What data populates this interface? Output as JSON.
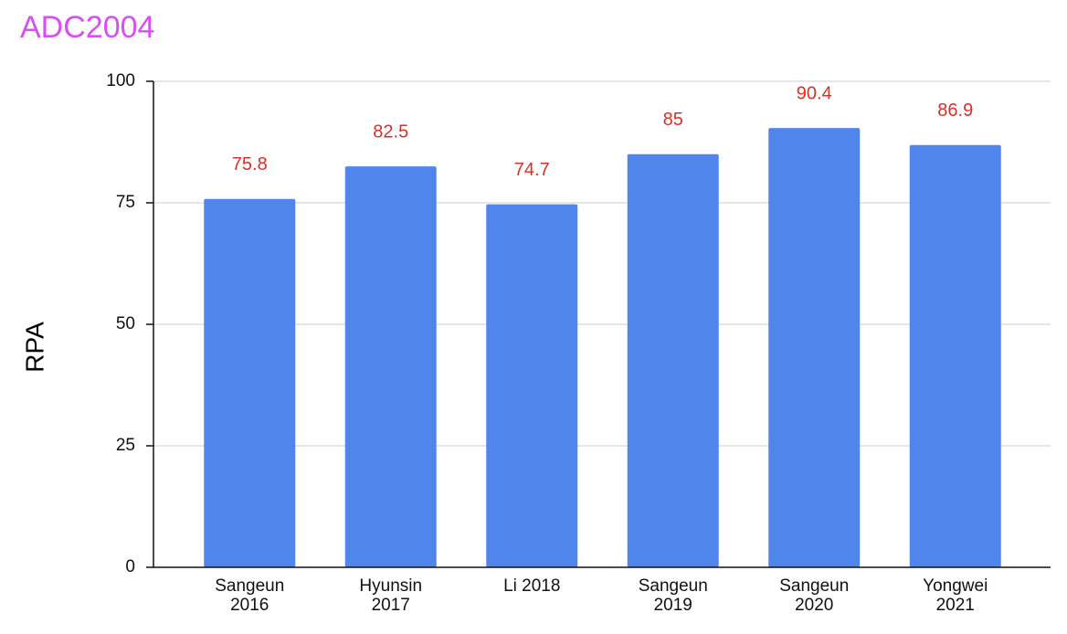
{
  "chart_data": {
    "type": "bar",
    "title": "ADC2004",
    "y_label": "RPA",
    "categories": [
      "Sangeun 2016",
      "Hyunsin 2017",
      "Li 2018",
      "Sangeun 2019",
      "Sangeun 2020",
      "Yongwei 2021"
    ],
    "values": [
      75.8,
      82.5,
      74.7,
      85,
      90.4,
      86.9
    ],
    "color": "#5086ec",
    "value_label_color": "#d93025",
    "title_color": "#d84ef2",
    "ylim": [
      0,
      100
    ],
    "yticks": [
      0,
      25,
      50,
      75,
      100
    ],
    "grid": true
  }
}
